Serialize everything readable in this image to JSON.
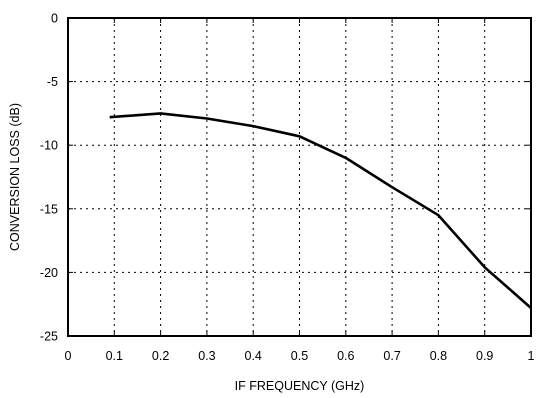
{
  "chart_data": {
    "type": "line",
    "title": "",
    "xlabel": "IF FREQUENCY (GHz)",
    "ylabel": "CONVERSION LOSS (dB)",
    "xlim": [
      0,
      1
    ],
    "ylim": [
      -25,
      0
    ],
    "x_ticks": [
      "0",
      "0.1",
      "0.2",
      "0.3",
      "0.4",
      "0.5",
      "0.6",
      "0.7",
      "0.8",
      "0.9",
      "1"
    ],
    "y_ticks": [
      "0",
      "-5",
      "-10",
      "-15",
      "-20",
      "-25"
    ],
    "grid": true,
    "series": [
      {
        "x": [
          0.09,
          0.2,
          0.3,
          0.4,
          0.5,
          0.6,
          0.7,
          0.8,
          0.9,
          1.0
        ],
        "y": [
          -7.8,
          -7.5,
          -7.9,
          -8.5,
          -9.3,
          -11.0,
          -13.3,
          -15.5,
          -19.6,
          -22.8
        ]
      }
    ],
    "colors": {
      "line": "#000000",
      "grid": "#000000",
      "frame": "#000000"
    }
  }
}
